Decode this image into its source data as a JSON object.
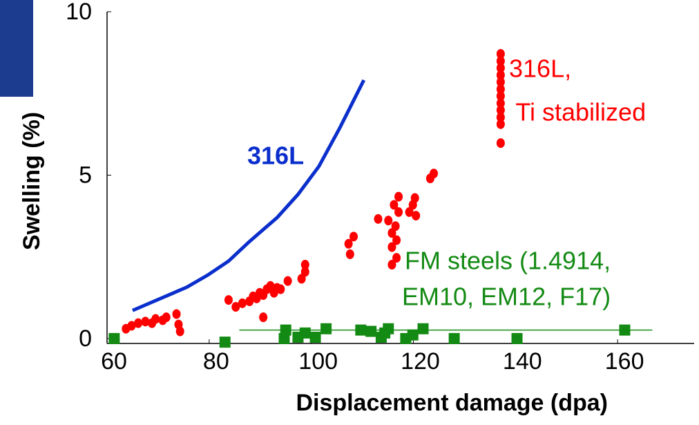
{
  "chart_data": {
    "type": "scatter",
    "xlabel": "Displacement damage (dpa)",
    "ylabel": "Swelling (%)",
    "xlim": [
      60,
      175
    ],
    "ylim": [
      -0.15,
      10
    ],
    "xticks": [
      60,
      80,
      100,
      120,
      140,
      160
    ],
    "yticks": [
      0,
      5,
      10
    ],
    "annotations": [
      "316L",
      "316L,",
      " Ti stabilized",
      "FM steels (1.4914,",
      "EM10, EM12, F17)"
    ],
    "series": [
      {
        "mode": "line",
        "color": "#0a2fcc",
        "x": [
          65.0,
          75.6,
          79.7,
          83.8,
          87.9,
          93.3,
          97.4,
          101.5,
          105.6,
          110.3
        ],
        "values": [
          0.86,
          1.57,
          1.94,
          2.37,
          2.97,
          3.7,
          4.41,
          5.27,
          6.45,
          7.91
        ]
      },
      {
        "mode": "points",
        "marker": "circle",
        "color": "#ff0000",
        "x": [
          63.7,
          64.8,
          66.1,
          67.5,
          68.8,
          69.5,
          70.9,
          71.6,
          73.6,
          74.0,
          74.3,
          83.8,
          85.2,
          86.5,
          87.9,
          88.6,
          89.3,
          89.9,
          90.6,
          90.6,
          91.3,
          92.0,
          92.7,
          93.3,
          94.0,
          95.4,
          98.1,
          98.8,
          98.8,
          107.3,
          107.6,
          108.3,
          113.1,
          115.1,
          115.8,
          115.8,
          115.8,
          116.2,
          116.5,
          116.7,
          116.7,
          117.1,
          117.1,
          119.2,
          119.9,
          120.3,
          120.5,
          123.3,
          124.0,
          137.1,
          137.1,
          137.1,
          137.1,
          137.1,
          137.1,
          137.1,
          137.1,
          137.1,
          137.1,
          137.1,
          137.1
        ],
        "values": [
          0.3,
          0.39,
          0.47,
          0.52,
          0.47,
          0.6,
          0.56,
          0.65,
          0.75,
          0.43,
          0.22,
          1.18,
          0.97,
          1.08,
          1.14,
          1.29,
          1.23,
          1.4,
          1.33,
          0.65,
          1.51,
          1.61,
          1.4,
          1.55,
          1.51,
          1.76,
          1.83,
          2.26,
          2.04,
          2.9,
          2.58,
          3.12,
          3.66,
          3.61,
          3.23,
          2.8,
          2.26,
          4.09,
          3.44,
          3.01,
          2.47,
          3.87,
          4.34,
          3.87,
          4.09,
          4.3,
          3.76,
          4.9,
          5.05,
          8.71,
          8.49,
          8.28,
          8.06,
          7.85,
          7.63,
          7.42,
          7.2,
          6.99,
          6.77,
          6.56,
          5.98
        ]
      },
      {
        "mode": "points",
        "marker": "square",
        "color": "#138a13",
        "x": [
          61.4,
          83.1,
          94.7,
          95.0,
          97.4,
          98.8,
          100.8,
          102.9,
          109.7,
          111.7,
          113.7,
          114.4,
          115.1,
          118.5,
          119.9,
          121.9,
          128.0,
          140.3,
          161.4
        ],
        "values": [
          0.0,
          -0.11,
          0.0,
          0.26,
          0.04,
          0.17,
          0.04,
          0.3,
          0.26,
          0.22,
          0.04,
          0.17,
          0.3,
          0.0,
          0.11,
          0.3,
          0.0,
          0.0,
          0.26
        ]
      },
      {
        "mode": "line",
        "color": "#138a13",
        "x": [
          85.9,
          166.8
        ],
        "values": [
          0.26,
          0.26
        ]
      }
    ]
  }
}
